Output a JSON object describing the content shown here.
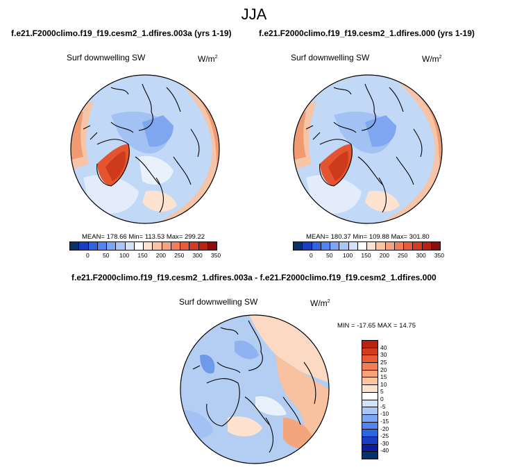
{
  "title": "JJA",
  "panel_left": {
    "subtitle": "f.e21.F2000climo.f19_f19.cesm2_1.dfires.003a (yrs 1-19)",
    "var_label": "Surf downwelling SW",
    "units": "W/m",
    "units_sup": "2",
    "stats": "MEAN= 178.66  Min= 113.53  Max= 299.22"
  },
  "panel_right": {
    "subtitle": "f.e21.F2000climo.f19_f19.cesm2_1.dfires.000 (yrs 1-19)",
    "var_label": "Surf downwelling SW",
    "units": "W/m",
    "units_sup": "2",
    "stats": "MEAN= 180.37  Min= 109.88  Max= 301.80"
  },
  "panel_diff": {
    "subtitle": "f.e21.F2000climo.f19_f19.cesm2_1.dfires.003a - f.e21.F2000climo.f19_f19.cesm2_1.dfires.000",
    "var_label": "Surf downwelling SW",
    "units": "W/m",
    "units_sup": "2",
    "stats": "MIN = -17.65  MAX =  14.75"
  },
  "colorbar_abs": {
    "ticks": [
      "0",
      "50",
      "100",
      "150",
      "200",
      "250",
      "300",
      "350"
    ],
    "colors": [
      "#08306b",
      "#1a3fc4",
      "#2f64e0",
      "#4f85ef",
      "#7aa6f3",
      "#a8c7f6",
      "#d1e2f9",
      "#ffffff",
      "#fde2cf",
      "#fbc3a0",
      "#f8a27c",
      "#f37e56",
      "#e85c35",
      "#d43c1e",
      "#b8230f",
      "#8e0e0b"
    ]
  },
  "colorbar_diff": {
    "ticks": [
      "40",
      "30",
      "25",
      "20",
      "15",
      "10",
      "5",
      "0",
      "-5",
      "-10",
      "-15",
      "-20",
      "-25",
      "-30",
      "-40"
    ],
    "colors": [
      "#b8230f",
      "#d43c1e",
      "#e85c35",
      "#f37e56",
      "#f8a27c",
      "#fbc3a0",
      "#fde2cf",
      "#ffffff",
      "#d1e2f9",
      "#a8c7f6",
      "#7aa6f3",
      "#4f85ef",
      "#2f64e0",
      "#1a3fc4",
      "#0a1fa0",
      "#08306b"
    ]
  },
  "map_colors": {
    "base_abs": "#c2d8f7",
    "base_diff": "#b3cdf3"
  }
}
